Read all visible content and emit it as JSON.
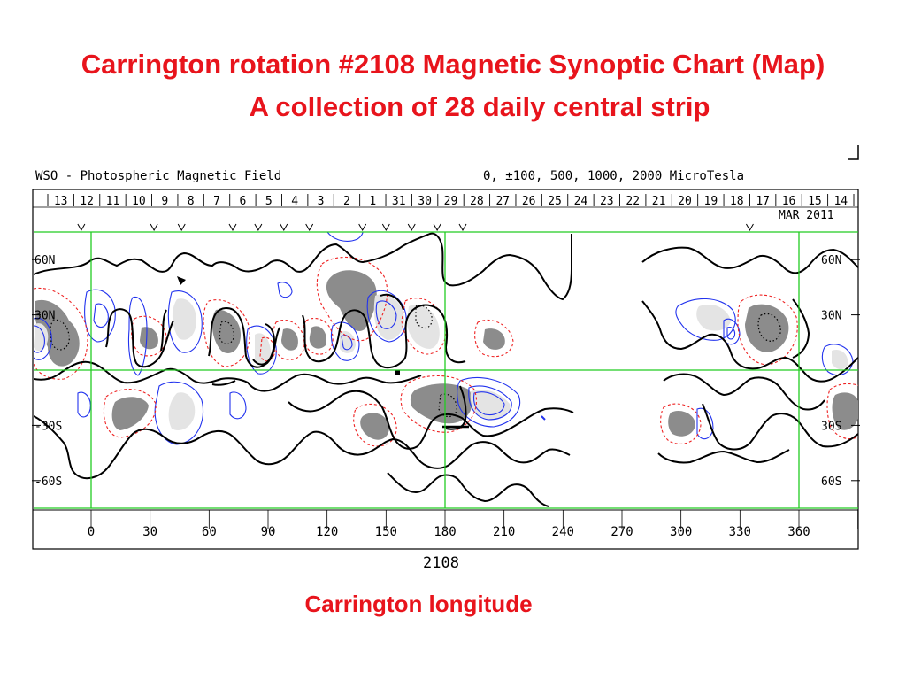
{
  "slide": {
    "title_line1": "Carrington rotation #2108 Magnetic Synoptic Chart (Map)",
    "title_line2": "A collection of 28 daily central strip",
    "x_caption": "Carrington longitude"
  },
  "colors": {
    "title": "#e8141c",
    "grid": "#22cc22",
    "positive_fill": "#8c8c8c",
    "negative_fill": "#e4e4e4",
    "negative_contour": "#2233ee",
    "neutral_line": "#000000",
    "weak_contour": "#ee2222"
  },
  "chart_data": {
    "type": "contour",
    "header": "WSO - Photospheric Magnetic Field",
    "contour_levels_label": "0, ±100, 500, 1000, 2000 MicroTesla",
    "dates_top": [
      "13",
      "12",
      "11",
      "10",
      "9",
      "8",
      "7",
      "6",
      "5",
      "4",
      "3",
      "2",
      "1",
      "31",
      "30",
      "29",
      "28",
      "27",
      "26",
      "25",
      "24",
      "23",
      "22",
      "21",
      "20",
      "19",
      "18",
      "17",
      "16",
      "15",
      "14"
    ],
    "month_label": "MAR 2011",
    "lat_labels_left": [
      "60N",
      "30N",
      "-30S",
      "-60S"
    ],
    "lat_labels_right": [
      "60N",
      "30N",
      "30S",
      "60S"
    ],
    "lat_ticks": [
      60,
      30,
      -30,
      -60
    ],
    "x_ticks": [
      0,
      30,
      60,
      90,
      120,
      150,
      180,
      210,
      240,
      270,
      300,
      330,
      360
    ],
    "xlim": [
      -30,
      390
    ],
    "ylim": [
      -90,
      90
    ],
    "grid_longitudes": [
      0,
      180,
      360
    ],
    "grid_latitudes": [
      75,
      0,
      -75
    ],
    "xlabel": "2108",
    "observation_marks_lon": [
      -5,
      32,
      46,
      72,
      85,
      98,
      111,
      138,
      150,
      163,
      176,
      189,
      335
    ]
  }
}
